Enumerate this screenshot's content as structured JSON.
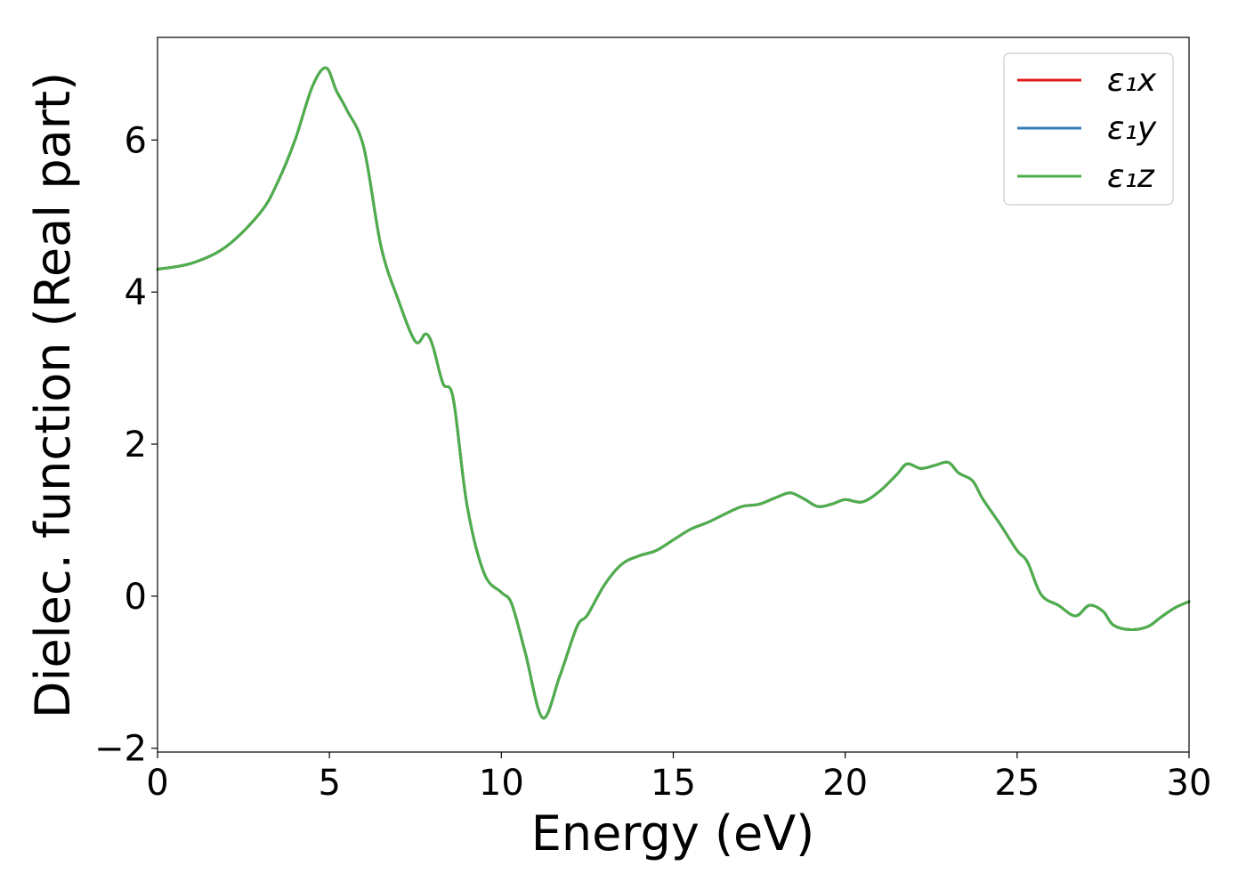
{
  "chart_data": {
    "type": "line",
    "title": "",
    "xlabel": "Energy (eV)",
    "ylabel": "Dielec. function (Real part)",
    "xlim": [
      0,
      30
    ],
    "ylim": [
      -2.05,
      7.35
    ],
    "xticks": [
      0,
      5,
      10,
      15,
      20,
      25,
      30
    ],
    "xtick_labels": [
      "0",
      "5",
      "10",
      "15",
      "20",
      "25",
      "30"
    ],
    "yticks": [
      -2,
      0,
      2,
      4,
      6
    ],
    "ytick_labels": [
      "−2",
      "0",
      "2",
      "4",
      "6"
    ],
    "grid": false,
    "legend_position": "top-right",
    "series": [
      {
        "name": "ε₁x",
        "color": "#e41a1c",
        "x": [
          0,
          1,
          2,
          3,
          3.5,
          4,
          4.5,
          4.9,
          5.2,
          5.5,
          6,
          6.5,
          7,
          7.5,
          7.8,
          8,
          8.3,
          8.6,
          9,
          9.5,
          10,
          10.3,
          10.7,
          11.2,
          11.7,
          12.2,
          12.5,
          13,
          13.5,
          14,
          14.5,
          15,
          15.5,
          16,
          16.5,
          17,
          17.5,
          18,
          18.4,
          18.8,
          19.2,
          19.6,
          20,
          20.5,
          21,
          21.5,
          21.8,
          22.2,
          22.6,
          23,
          23.3,
          23.7,
          24,
          24.5,
          25,
          25.3,
          25.7,
          26.2,
          26.7,
          27.1,
          27.5,
          27.8,
          28.3,
          28.8,
          29.2,
          29.6,
          30
        ],
        "values": [
          4.3,
          4.38,
          4.6,
          5.05,
          5.45,
          6.0,
          6.7,
          6.95,
          6.65,
          6.4,
          5.9,
          4.6,
          3.9,
          3.35,
          3.45,
          3.3,
          2.8,
          2.6,
          1.2,
          0.3,
          0.05,
          -0.1,
          -0.75,
          -1.6,
          -1.05,
          -0.4,
          -0.25,
          0.15,
          0.42,
          0.53,
          0.6,
          0.74,
          0.88,
          0.97,
          1.08,
          1.18,
          1.21,
          1.3,
          1.36,
          1.28,
          1.18,
          1.21,
          1.27,
          1.24,
          1.38,
          1.6,
          1.74,
          1.68,
          1.72,
          1.76,
          1.62,
          1.52,
          1.28,
          0.95,
          0.6,
          0.45,
          0.02,
          -0.12,
          -0.26,
          -0.12,
          -0.2,
          -0.38,
          -0.44,
          -0.4,
          -0.27,
          -0.15,
          -0.07
        ]
      },
      {
        "name": "ε₁y",
        "color": "#377eb8",
        "x": [
          0,
          1,
          2,
          3,
          3.5,
          4,
          4.5,
          4.9,
          5.2,
          5.5,
          6,
          6.5,
          7,
          7.5,
          7.8,
          8,
          8.3,
          8.6,
          9,
          9.5,
          10,
          10.3,
          10.7,
          11.2,
          11.7,
          12.2,
          12.5,
          13,
          13.5,
          14,
          14.5,
          15,
          15.5,
          16,
          16.5,
          17,
          17.5,
          18,
          18.4,
          18.8,
          19.2,
          19.6,
          20,
          20.5,
          21,
          21.5,
          21.8,
          22.2,
          22.6,
          23,
          23.3,
          23.7,
          24,
          24.5,
          25,
          25.3,
          25.7,
          26.2,
          26.7,
          27.1,
          27.5,
          27.8,
          28.3,
          28.8,
          29.2,
          29.6,
          30
        ],
        "values": [
          4.3,
          4.38,
          4.6,
          5.05,
          5.45,
          6.0,
          6.7,
          6.95,
          6.65,
          6.4,
          5.9,
          4.6,
          3.9,
          3.35,
          3.45,
          3.3,
          2.8,
          2.6,
          1.2,
          0.3,
          0.05,
          -0.1,
          -0.75,
          -1.6,
          -1.05,
          -0.4,
          -0.25,
          0.15,
          0.42,
          0.53,
          0.6,
          0.74,
          0.88,
          0.97,
          1.08,
          1.18,
          1.21,
          1.3,
          1.36,
          1.28,
          1.18,
          1.21,
          1.27,
          1.24,
          1.38,
          1.6,
          1.74,
          1.68,
          1.72,
          1.76,
          1.62,
          1.52,
          1.28,
          0.95,
          0.6,
          0.45,
          0.02,
          -0.12,
          -0.26,
          -0.12,
          -0.2,
          -0.38,
          -0.44,
          -0.4,
          -0.27,
          -0.15,
          -0.07
        ]
      },
      {
        "name": "ε₁z",
        "color": "#4daf4a",
        "x": [
          0,
          1,
          2,
          3,
          3.5,
          4,
          4.5,
          4.9,
          5.2,
          5.5,
          6,
          6.5,
          7,
          7.5,
          7.8,
          8,
          8.3,
          8.6,
          9,
          9.5,
          10,
          10.3,
          10.7,
          11.2,
          11.7,
          12.2,
          12.5,
          13,
          13.5,
          14,
          14.5,
          15,
          15.5,
          16,
          16.5,
          17,
          17.5,
          18,
          18.4,
          18.8,
          19.2,
          19.6,
          20,
          20.5,
          21,
          21.5,
          21.8,
          22.2,
          22.6,
          23,
          23.3,
          23.7,
          24,
          24.5,
          25,
          25.3,
          25.7,
          26.2,
          26.7,
          27.1,
          27.5,
          27.8,
          28.3,
          28.8,
          29.2,
          29.6,
          30
        ],
        "values": [
          4.3,
          4.38,
          4.6,
          5.05,
          5.45,
          6.0,
          6.7,
          6.95,
          6.65,
          6.4,
          5.9,
          4.6,
          3.9,
          3.35,
          3.45,
          3.3,
          2.8,
          2.6,
          1.2,
          0.3,
          0.05,
          -0.1,
          -0.75,
          -1.6,
          -1.05,
          -0.4,
          -0.25,
          0.15,
          0.42,
          0.53,
          0.6,
          0.74,
          0.88,
          0.97,
          1.08,
          1.18,
          1.21,
          1.3,
          1.36,
          1.28,
          1.18,
          1.21,
          1.27,
          1.24,
          1.38,
          1.6,
          1.74,
          1.68,
          1.72,
          1.76,
          1.62,
          1.52,
          1.28,
          0.95,
          0.6,
          0.45,
          0.02,
          -0.12,
          -0.26,
          -0.12,
          -0.2,
          -0.38,
          -0.44,
          -0.4,
          -0.27,
          -0.15,
          -0.07
        ]
      }
    ]
  }
}
